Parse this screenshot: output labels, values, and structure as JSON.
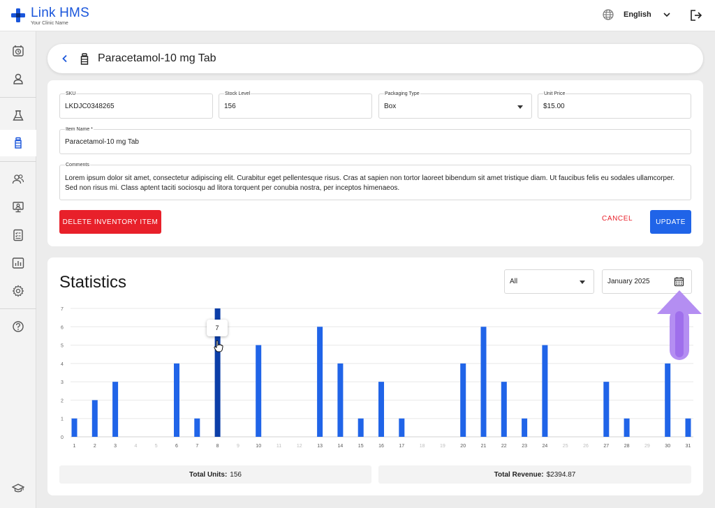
{
  "app": {
    "name": "Link",
    "name_bold": "HMS",
    "subtitle": "Your Clinic Name"
  },
  "topbar": {
    "language": "English",
    "icons": [
      "globe-icon",
      "chevron-down-icon",
      "logout-icon"
    ]
  },
  "sidebar": {
    "items": [
      {
        "name": "appointments",
        "icon": "alarm-clock-icon"
      },
      {
        "name": "patients",
        "icon": "user-icon"
      },
      {
        "name": "lab",
        "icon": "flask-icon"
      },
      {
        "name": "inventory",
        "icon": "bottle-icon",
        "active": true
      },
      {
        "name": "staff",
        "icon": "users-icon"
      },
      {
        "name": "monitor",
        "icon": "monitor-icon"
      },
      {
        "name": "reports",
        "icon": "document-icon"
      },
      {
        "name": "analytics",
        "icon": "chart-icon"
      },
      {
        "name": "settings",
        "icon": "gear-icon"
      },
      {
        "name": "help",
        "icon": "help-icon"
      },
      {
        "name": "education",
        "icon": "graduation-cap-icon"
      }
    ]
  },
  "header": {
    "title": "Paracetamol-10 mg Tab"
  },
  "form": {
    "sku": {
      "label": "SKU",
      "value": "LKDJC0348265"
    },
    "stock": {
      "label": "Stock Level",
      "value": "156"
    },
    "packaging": {
      "label": "Packaging Type",
      "value": "Box"
    },
    "price": {
      "label": "Unit Price",
      "value": "$15.00"
    },
    "item_name": {
      "label": "Item Name *",
      "value": "Paracetamol-10 mg Tab"
    },
    "comments": {
      "label": "Comments",
      "value": "Lorem ipsum dolor sit amet, consectetur adipiscing elit. Curabitur eget pellentesque risus. Cras at sapien non tortor laoreet bibendum sit amet tristique diam. Ut faucibus felis eu sodales ullamcorper. Sed non risus mi. Class aptent taciti sociosqu ad litora torquent per conubia nostra, per inceptos himenaeos."
    },
    "delete_label": "DELETE INVENTORY ITEM",
    "cancel_label": "CANCEL",
    "update_label": "UPDATE"
  },
  "stats": {
    "title": "Statistics",
    "filter_value": "All",
    "date_value": "January 2025",
    "total_units_label": "Total Units:",
    "total_units_value": "156",
    "total_revenue_label": "Total Revenue:",
    "total_revenue_value": "$2394.87",
    "tooltip_value": "7",
    "colors": {
      "bar": "#2064e8",
      "bar_active": "#0c3ea8",
      "arrow": "#b48ef2"
    }
  },
  "chart_data": {
    "type": "bar",
    "categories": [
      "1",
      "2",
      "3",
      "4",
      "5",
      "6",
      "7",
      "8",
      "9",
      "10",
      "11",
      "12",
      "13",
      "14",
      "15",
      "16",
      "17",
      "18",
      "19",
      "20",
      "21",
      "22",
      "23",
      "24",
      "25",
      "26",
      "27",
      "28",
      "29",
      "30",
      "31"
    ],
    "values": [
      1,
      2,
      3,
      0,
      0,
      4,
      1,
      7,
      0,
      5,
      0,
      0,
      6,
      4,
      1,
      3,
      1,
      0,
      0,
      4,
      6,
      3,
      1,
      5,
      0,
      0,
      3,
      1,
      0,
      4,
      1
    ],
    "highlighted_category": "8",
    "yticks": [
      0,
      1,
      2,
      3,
      4,
      5,
      6,
      7
    ],
    "ylim": [
      0,
      7
    ],
    "grid": true,
    "title": "",
    "xlabel": "",
    "ylabel": ""
  }
}
